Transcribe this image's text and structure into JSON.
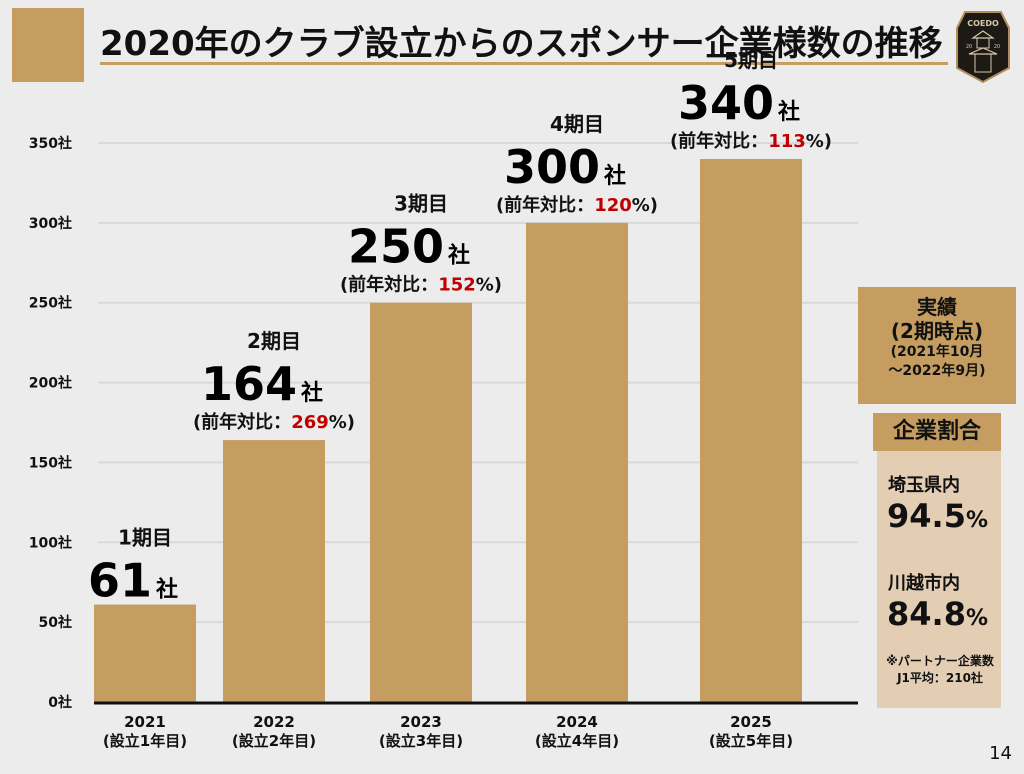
{
  "header": {
    "title": "2020年のクラブ設立からのスポンサー企業様数の推移",
    "logo": {
      "icon": "club-crest-icon",
      "text": "COEDO",
      "year_left": "20",
      "year_right": "20"
    }
  },
  "colors": {
    "bar": "#c59d61",
    "accent": "#c59d61",
    "panel_light": "#e3cdb3",
    "yoy_highlight": "#c00000",
    "axis": "#111111",
    "gridline": "#d9d9d9",
    "background": "#ececec"
  },
  "chart_data": {
    "type": "bar",
    "title": "2020年のクラブ設立からのスポンサー企業様数の推移",
    "xlabel": "",
    "ylabel": "",
    "unit": "社",
    "ylim": [
      0,
      350
    ],
    "yticks": [
      0,
      50,
      100,
      150,
      200,
      250,
      300,
      350
    ],
    "ytick_labels": [
      "0社",
      "50社",
      "100社",
      "150社",
      "200社",
      "250社",
      "300社",
      "350社"
    ],
    "grid": true,
    "categories": [
      "2021",
      "2022",
      "2023",
      "2024",
      "2025"
    ],
    "category_sublabels": [
      "(設立1年目)",
      "(設立2年目)",
      "(設立3年目)",
      "(設立4年目)",
      "(設立5年目)"
    ],
    "values": [
      61,
      164,
      250,
      300,
      340
    ],
    "annotations": [
      {
        "period": "1期目",
        "value_text": "61",
        "unit": "社",
        "yoy_prefix": "",
        "yoy_value": "",
        "yoy_suffix": ""
      },
      {
        "period": "2期目",
        "value_text": "164",
        "unit": "社",
        "yoy_prefix": "(前年対比：",
        "yoy_value": "269",
        "yoy_suffix": "%)"
      },
      {
        "period": "3期目",
        "value_text": "250",
        "unit": "社",
        "yoy_prefix": "(前年対比：",
        "yoy_value": "152",
        "yoy_suffix": "%)"
      },
      {
        "period": "4期目",
        "value_text": "300",
        "unit": "社",
        "yoy_prefix": "(前年対比：",
        "yoy_value": "120",
        "yoy_suffix": "%)"
      },
      {
        "period": "5期目",
        "value_text": "340",
        "unit": "社",
        "yoy_prefix": "(前年対比：",
        "yoy_value": "113",
        "yoy_suffix": "%)"
      }
    ]
  },
  "side": {
    "header_line1": "実績",
    "header_line2": "(2期時点)",
    "header_line3": "(2021年10月",
    "header_line4": "〜2022年9月)",
    "share_title": "企業割合",
    "items": [
      {
        "label": "埼玉県内",
        "value": "94.5",
        "unit": "%"
      },
      {
        "label": "川越市内",
        "value": "84.8",
        "unit": "%"
      }
    ],
    "note_line1": "※パートナー企業数",
    "note_line2": "J1平均：210社"
  },
  "footer": {
    "page_number": "14"
  }
}
